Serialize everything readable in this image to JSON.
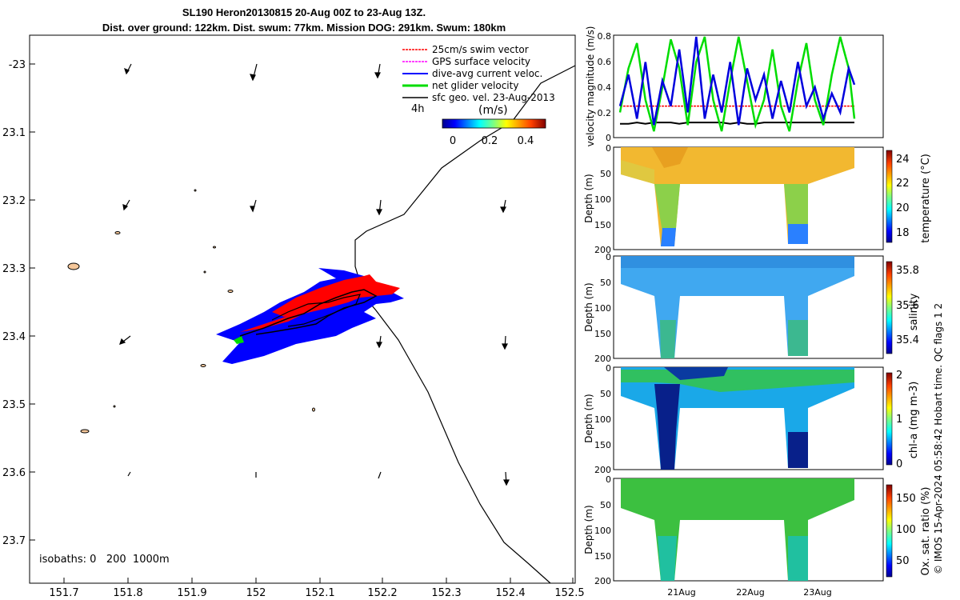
{
  "header": {
    "title_line1": "SL190 Heron20130815 20-Aug 00Z to 23-Aug 13Z.",
    "title_line2": "Dist. over ground: 122km. Dist. swum: 77km. Mission DOG: 291km. Swum: 180km"
  },
  "map": {
    "xticks": [
      "151.7",
      "151.8",
      "151.9",
      "152",
      "152.1",
      "152.2",
      "152.3",
      "152.4",
      "152.5"
    ],
    "yticks": [
      "-23",
      "23.1",
      "23.2",
      "23.3",
      "23.4",
      "23.5",
      "23.6",
      "23.7"
    ],
    "legend": [
      {
        "label": "25cm/s swim vector",
        "color": "#ff0000"
      },
      {
        "label": "GPS surface velocity",
        "color": "#ff00ff"
      },
      {
        "label": "dive-avg current veloc.",
        "color": "#0000ff"
      },
      {
        "label": "net glider velocity",
        "color": "#00cc00"
      },
      {
        "label": "sfc geo. vel. 23-Aug-2013",
        "color": "#000000"
      }
    ],
    "colorbar_label": "(m/s)",
    "colorbar_time": "4h",
    "colorbar_ticks": [
      "0",
      "0.2",
      "0.4"
    ],
    "isobaths": "isobaths: 0   200  1000m"
  },
  "chart_data": [
    {
      "type": "line",
      "title": "velocity magnitude",
      "ylabel": "velocity magnitude (m/s)",
      "ylim": [
        0,
        0.8
      ],
      "yticks": [
        "0.8",
        "0.6",
        "0.4",
        "0.2",
        "0"
      ],
      "x_hours_from_20Aug00Z": [
        0,
        3,
        6,
        9,
        12,
        15,
        18,
        21,
        24,
        27,
        30,
        33,
        36,
        39,
        42,
        45,
        48,
        51,
        54,
        57,
        60,
        63,
        66,
        69,
        72,
        75,
        78,
        81,
        83
      ],
      "series": [
        {
          "name": "net glider velocity",
          "color": "#00dd00",
          "values": [
            0.2,
            0.55,
            0.75,
            0.3,
            0.05,
            0.4,
            0.78,
            0.55,
            0.1,
            0.6,
            0.8,
            0.3,
            0.05,
            0.45,
            0.8,
            0.45,
            0.1,
            0.3,
            0.7,
            0.25,
            0.05,
            0.45,
            0.75,
            0.3,
            0.1,
            0.5,
            0.8,
            0.55,
            0.15
          ]
        },
        {
          "name": "dive-avg current veloc.",
          "color": "#0000dd",
          "values": [
            0.25,
            0.5,
            0.15,
            0.6,
            0.1,
            0.45,
            0.25,
            0.7,
            0.2,
            0.8,
            0.15,
            0.5,
            0.2,
            0.6,
            0.1,
            0.55,
            0.3,
            0.5,
            0.15,
            0.45,
            0.2,
            0.6,
            0.25,
            0.4,
            0.15,
            0.35,
            0.2,
            0.55,
            0.42
          ]
        },
        {
          "name": "25cm/s swim vector",
          "color": "#ff0000",
          "values": [
            0.25,
            0.25,
            0.25,
            0.25,
            0.25,
            0.25,
            0.25,
            0.25,
            0.25,
            0.25,
            0.25,
            0.25,
            0.25,
            0.25,
            0.25,
            0.25,
            0.25,
            0.25,
            0.25,
            0.25,
            0.25,
            0.25,
            0.25,
            0.25,
            0.25,
            0.25,
            0.25,
            0.25,
            0.25
          ]
        },
        {
          "name": "sfc geo. vel.",
          "color": "#000000",
          "values": [
            0.11,
            0.11,
            0.12,
            0.11,
            0.12,
            0.12,
            0.12,
            0.11,
            0.12,
            0.12,
            0.12,
            0.12,
            0.12,
            0.11,
            0.12,
            0.11,
            0.11,
            0.12,
            0.12,
            0.12,
            0.12,
            0.12,
            0.12,
            0.12,
            0.12,
            0.12,
            0.12,
            0.12,
            0.12
          ]
        }
      ]
    },
    {
      "type": "scatter",
      "title": "temperature",
      "ylabel": "Depth (m)",
      "yticks": [
        "0",
        "50",
        "100",
        "150",
        "200"
      ],
      "colorbar_label": "temperature (°C)",
      "colorbar_ticks": [
        "24",
        "22",
        "20",
        "18"
      ],
      "clim": [
        17,
        24.5
      ]
    },
    {
      "type": "scatter",
      "title": "salinity",
      "ylabel": "Depth (m)",
      "yticks": [
        "0",
        "50",
        "100",
        "150",
        "200"
      ],
      "colorbar_label": "salinity",
      "colorbar_ticks": [
        "35.8",
        "35.6",
        "35.4"
      ],
      "clim": [
        35.3,
        35.85
      ]
    },
    {
      "type": "scatter",
      "title": "chl-a",
      "ylabel": "Depth (m)",
      "yticks": [
        "0",
        "50",
        "100",
        "150",
        "200"
      ],
      "colorbar_label": "chl-a (mg m-3)",
      "colorbar_ticks": [
        "2",
        "1",
        "0"
      ],
      "clim": [
        0,
        2
      ]
    },
    {
      "type": "scatter",
      "title": "oxygen",
      "ylabel": "Depth (m)",
      "yticks": [
        "0",
        "50",
        "100",
        "150",
        "200"
      ],
      "xticks": [
        "21Aug",
        "22Aug",
        "23Aug"
      ],
      "colorbar_label": "Ox. sat. ratio (%)",
      "colorbar_ticks": [
        "150",
        "100",
        "50"
      ],
      "clim": [
        20,
        175
      ]
    }
  ],
  "footer": {
    "credit": "© IMOS 15-Apr-2024 05:58:42 Hobart time. QC flags 1  2"
  }
}
